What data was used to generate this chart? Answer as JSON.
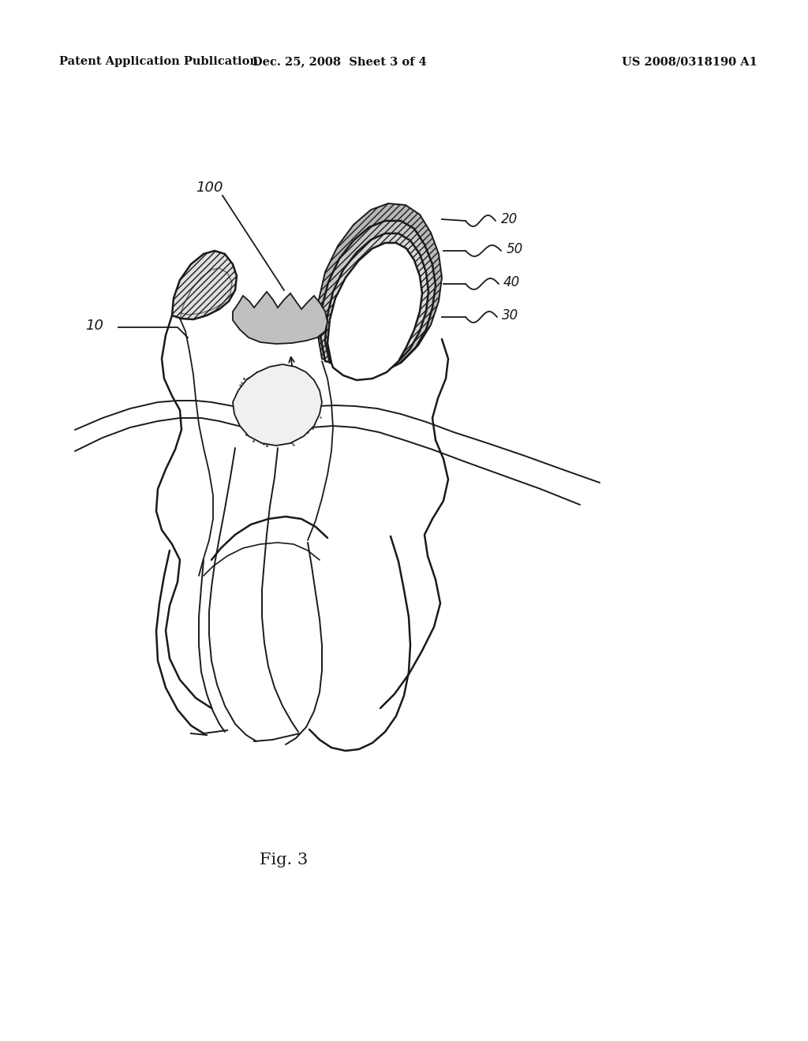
{
  "header_left": "Patent Application Publication",
  "header_center": "Dec. 25, 2008  Sheet 3 of 4",
  "header_right": "US 2008/0318190 A1",
  "fig_label": "Fig. 3",
  "background_color": "#ffffff",
  "lc": "#1a1a1a"
}
